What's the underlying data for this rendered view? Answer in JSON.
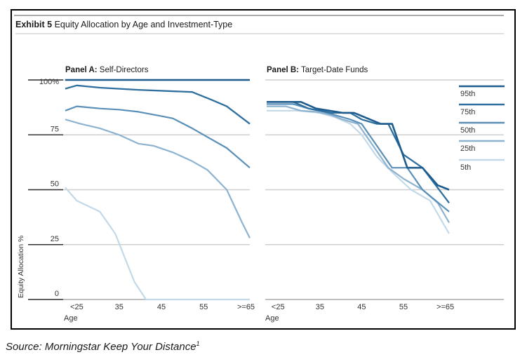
{
  "exhibit": {
    "label": "Exhibit 5",
    "title": "Equity Allocation by Age and Investment-Type"
  },
  "source": {
    "text": "Source: Morningstar Keep Your Distance",
    "footnote": "1"
  },
  "colors": {
    "95th": "#1f5c8e",
    "75th": "#2e6f9e",
    "50th": "#5a8fb8",
    "25th": "#8db3d0",
    "5th": "#c3d9e8",
    "grid": "#cfcfcf"
  },
  "legend": [
    {
      "key": "95th",
      "label": "95th"
    },
    {
      "key": "75th",
      "label": "75th"
    },
    {
      "key": "50th",
      "label": "50th"
    },
    {
      "key": "25th",
      "label": "25th"
    },
    {
      "key": "5th",
      "label": "5th"
    }
  ],
  "chart_data": [
    {
      "type": "line",
      "panel_label": "Panel A",
      "title": "Self-Directors",
      "xlabel": "Age",
      "ylabel": "Equity Allocation %",
      "x_ticks": [
        "<25",
        "35",
        "45",
        "55",
        ">=65"
      ],
      "y_ticks": [
        "0",
        "25",
        "50",
        "75",
        "100%"
      ],
      "xlim": [
        20,
        68
      ],
      "ylim": [
        0,
        100
      ],
      "series": [
        {
          "name": "95th",
          "x": [
            20,
            68
          ],
          "y": [
            100,
            100
          ]
        },
        {
          "name": "75th",
          "x": [
            20,
            23,
            29,
            39,
            53,
            58,
            62,
            68
          ],
          "y": [
            96,
            97.5,
            96.5,
            95.5,
            94.5,
            91,
            88,
            80
          ]
        },
        {
          "name": "50th",
          "x": [
            20,
            23,
            29,
            34,
            39,
            45,
            48,
            53,
            57,
            62,
            68
          ],
          "y": [
            86,
            88,
            87,
            86.5,
            85.5,
            83.5,
            82.5,
            78,
            74,
            69,
            60
          ]
        },
        {
          "name": "25th",
          "x": [
            20,
            24,
            29,
            34,
            39,
            43,
            48,
            53,
            57,
            62,
            66,
            68
          ],
          "y": [
            82,
            80,
            78,
            75,
            71,
            70,
            67,
            63,
            59,
            50,
            35,
            28
          ]
        },
        {
          "name": "5th",
          "x": [
            20,
            23,
            29,
            33,
            38,
            41,
            68
          ],
          "y": [
            51,
            45,
            40,
            30,
            8,
            0,
            0
          ]
        }
      ]
    },
    {
      "type": "line",
      "panel_label": "Panel B",
      "title": "Target-Date Funds",
      "xlabel": "Age",
      "x_ticks": [
        "<25",
        "35",
        "45",
        "55",
        ">=65"
      ],
      "xlim": [
        20,
        68
      ],
      "ylim": [
        0,
        100
      ],
      "series": [
        {
          "name": "95th",
          "x": [
            20,
            29,
            33,
            40,
            43,
            50,
            53,
            57,
            61,
            65,
            68
          ],
          "y": [
            90,
            90,
            87,
            85,
            85,
            80,
            80,
            60,
            60,
            52,
            50
          ]
        },
        {
          "name": "75th",
          "x": [
            20,
            27,
            31,
            34,
            37,
            42,
            45,
            49,
            52,
            56,
            61,
            68
          ],
          "y": [
            90,
            90,
            87,
            86,
            85,
            85,
            82,
            80,
            80,
            66,
            60,
            44
          ]
        },
        {
          "name": "50th",
          "x": [
            20,
            27,
            31,
            35,
            38,
            42,
            45,
            49,
            53,
            57,
            61,
            68
          ],
          "y": [
            89,
            89,
            87,
            85.5,
            84,
            82,
            80,
            70,
            60,
            60,
            50,
            40
          ]
        },
        {
          "name": "25th",
          "x": [
            20,
            25,
            29,
            33,
            37,
            40,
            44,
            48,
            52,
            56,
            61,
            65,
            68
          ],
          "y": [
            88,
            88,
            86,
            85.5,
            84,
            82,
            80,
            70,
            60,
            55,
            50,
            44,
            35
          ]
        },
        {
          "name": "5th",
          "x": [
            20,
            28,
            34,
            38,
            42,
            45,
            49,
            53,
            58,
            63,
            68
          ],
          "y": [
            86,
            86,
            85,
            83,
            80,
            75,
            65,
            58,
            50,
            45,
            30
          ]
        }
      ]
    }
  ]
}
